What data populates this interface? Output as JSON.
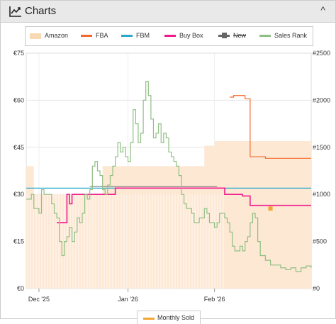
{
  "header": {
    "title": "Charts",
    "toggle": "^"
  },
  "legend": [
    {
      "label": "Amazon",
      "color": "#f8d9b4",
      "strike": false
    },
    {
      "label": "FBA",
      "color": "#f36a2e",
      "strike": false
    },
    {
      "label": "FBM",
      "color": "#27a8cc",
      "strike": false
    },
    {
      "label": "Buy Box",
      "color": "#ef1d8b",
      "strike": false
    },
    {
      "label": "New",
      "color": "#666666",
      "strike": true
    },
    {
      "label": "Sales Rank",
      "color": "#8fbf84",
      "strike": false
    }
  ],
  "bottom_legend": {
    "label": "Monthly Sold",
    "color": "#f3a633"
  },
  "colors": {
    "amazon_fill": "#fde8d4",
    "fba": "#f36a2e",
    "fbm": "#27a8cc",
    "buybox": "#ef1d8b",
    "new": "#888888",
    "salesrank": "#8fbf84",
    "monthly": "#f3a633"
  },
  "chart_data": {
    "type": "line",
    "x_ticks": [
      "Dec '25",
      "Jan '26",
      "Feb '26"
    ],
    "y_left_ticks": [
      "€0",
      "€15",
      "€30",
      "€45",
      "€60",
      "€75"
    ],
    "y_right_ticks": [
      "#0",
      "#500",
      "#1000",
      "#1500",
      "#2000",
      "#2500"
    ],
    "y_left_range": [
      0,
      75
    ],
    "y_right_range": [
      0,
      2500
    ],
    "x_range_days": [
      0,
      112
    ],
    "grid": true,
    "series": [
      {
        "name": "FBA",
        "axis": "left",
        "color": "#f36a2e",
        "points": [
          [
            80,
            61
          ],
          [
            81.5,
            61.5
          ],
          [
            85,
            61.5
          ],
          [
            86,
            60.5
          ],
          [
            88,
            60.5
          ],
          [
            88,
            42
          ],
          [
            94,
            42
          ],
          [
            94,
            41.5
          ],
          [
            112,
            41.5
          ]
        ]
      },
      {
        "name": "FBM",
        "axis": "left",
        "color": "#27a8cc",
        "points": [
          [
            0,
            32
          ],
          [
            112,
            32
          ]
        ]
      },
      {
        "name": "Buy Box",
        "axis": "left",
        "color": "#ef1d8b",
        "points": [
          [
            12,
            21
          ],
          [
            16,
            21
          ],
          [
            16,
            30
          ],
          [
            17,
            30
          ],
          [
            17,
            27
          ],
          [
            18,
            30
          ],
          [
            35,
            30
          ],
          [
            35,
            32
          ],
          [
            78,
            32
          ],
          [
            78,
            30
          ],
          [
            84,
            30
          ],
          [
            85,
            30
          ],
          [
            85,
            29.5
          ],
          [
            88,
            29.5
          ],
          [
            88,
            26.5
          ],
          [
            112,
            26.5
          ]
        ]
      },
      {
        "name": "New",
        "axis": "left",
        "color": "#888888",
        "points": [
          [
            25,
            32.5
          ],
          [
            75,
            32.5
          ]
        ]
      },
      {
        "name": "Sales Rank",
        "axis": "right",
        "color": "#8fbf84",
        "points": [
          [
            0,
            950
          ],
          [
            2,
            1000
          ],
          [
            3,
            850
          ],
          [
            5,
            800
          ],
          [
            6,
            1050
          ],
          [
            7,
            1000
          ],
          [
            9,
            1000
          ],
          [
            10,
            900
          ],
          [
            11,
            800
          ],
          [
            12,
            750
          ],
          [
            13,
            500
          ],
          [
            14,
            350
          ],
          [
            15,
            500
          ],
          [
            16,
            550
          ],
          [
            17,
            650
          ],
          [
            18,
            500
          ],
          [
            19,
            600
          ],
          [
            20,
            750
          ],
          [
            21,
            700
          ],
          [
            22,
            800
          ],
          [
            23,
            1000
          ],
          [
            24,
            950
          ],
          [
            25,
            1050
          ],
          [
            26,
            1300
          ],
          [
            27,
            1350
          ],
          [
            28,
            1250
          ],
          [
            29,
            1200
          ],
          [
            30,
            1050
          ],
          [
            31,
            1000
          ],
          [
            32,
            1100
          ],
          [
            33,
            1200
          ],
          [
            34,
            1300
          ],
          [
            35,
            1400
          ],
          [
            36,
            1550
          ],
          [
            37,
            1450
          ],
          [
            38,
            1500
          ],
          [
            39,
            1400
          ],
          [
            40,
            1350
          ],
          [
            41,
            1550
          ],
          [
            42,
            1900
          ],
          [
            43,
            1750
          ],
          [
            44,
            1550
          ],
          [
            45,
            1650
          ],
          [
            46,
            2000
          ],
          [
            47,
            2200
          ],
          [
            48,
            2050
          ],
          [
            49,
            1800
          ],
          [
            50,
            1600
          ],
          [
            51,
            1650
          ],
          [
            52,
            1750
          ],
          [
            53,
            1550
          ],
          [
            54,
            1650
          ],
          [
            55,
            1600
          ],
          [
            56,
            1450
          ],
          [
            57,
            1400
          ],
          [
            58,
            1350
          ],
          [
            59,
            1300
          ],
          [
            60,
            1200
          ],
          [
            61,
            1000
          ],
          [
            62,
            900
          ],
          [
            63,
            850
          ],
          [
            65,
            800
          ],
          [
            66,
            700
          ],
          [
            68,
            750
          ],
          [
            70,
            850
          ],
          [
            71,
            800
          ],
          [
            72,
            700
          ],
          [
            74,
            650
          ],
          [
            75,
            700
          ],
          [
            76,
            800
          ],
          [
            78,
            750
          ],
          [
            79,
            700
          ],
          [
            80,
            600
          ],
          [
            81,
            450
          ],
          [
            82,
            400
          ],
          [
            84,
            450
          ],
          [
            85,
            400
          ],
          [
            86,
            500
          ],
          [
            87,
            550
          ],
          [
            88,
            700
          ],
          [
            89,
            800
          ],
          [
            90,
            750
          ],
          [
            91,
            500
          ],
          [
            92,
            350
          ],
          [
            94,
            300
          ],
          [
            96,
            250
          ],
          [
            98,
            250
          ],
          [
            100,
            220
          ],
          [
            102,
            200
          ],
          [
            104,
            220
          ],
          [
            106,
            180
          ],
          [
            108,
            220
          ],
          [
            110,
            240
          ],
          [
            112,
            220
          ]
        ]
      }
    ],
    "amazon_area": {
      "axis": "left",
      "color": "#fde8d4",
      "points": [
        [
          0,
          39
        ],
        [
          3,
          39
        ],
        [
          3,
          30
        ],
        [
          30,
          30
        ],
        [
          30,
          39
        ],
        [
          70,
          39
        ],
        [
          70,
          45.5
        ],
        [
          74,
          45.5
        ],
        [
          74,
          47
        ],
        [
          112,
          47
        ]
      ]
    },
    "monthly_marker": {
      "x": 96,
      "y": 25.5
    }
  }
}
